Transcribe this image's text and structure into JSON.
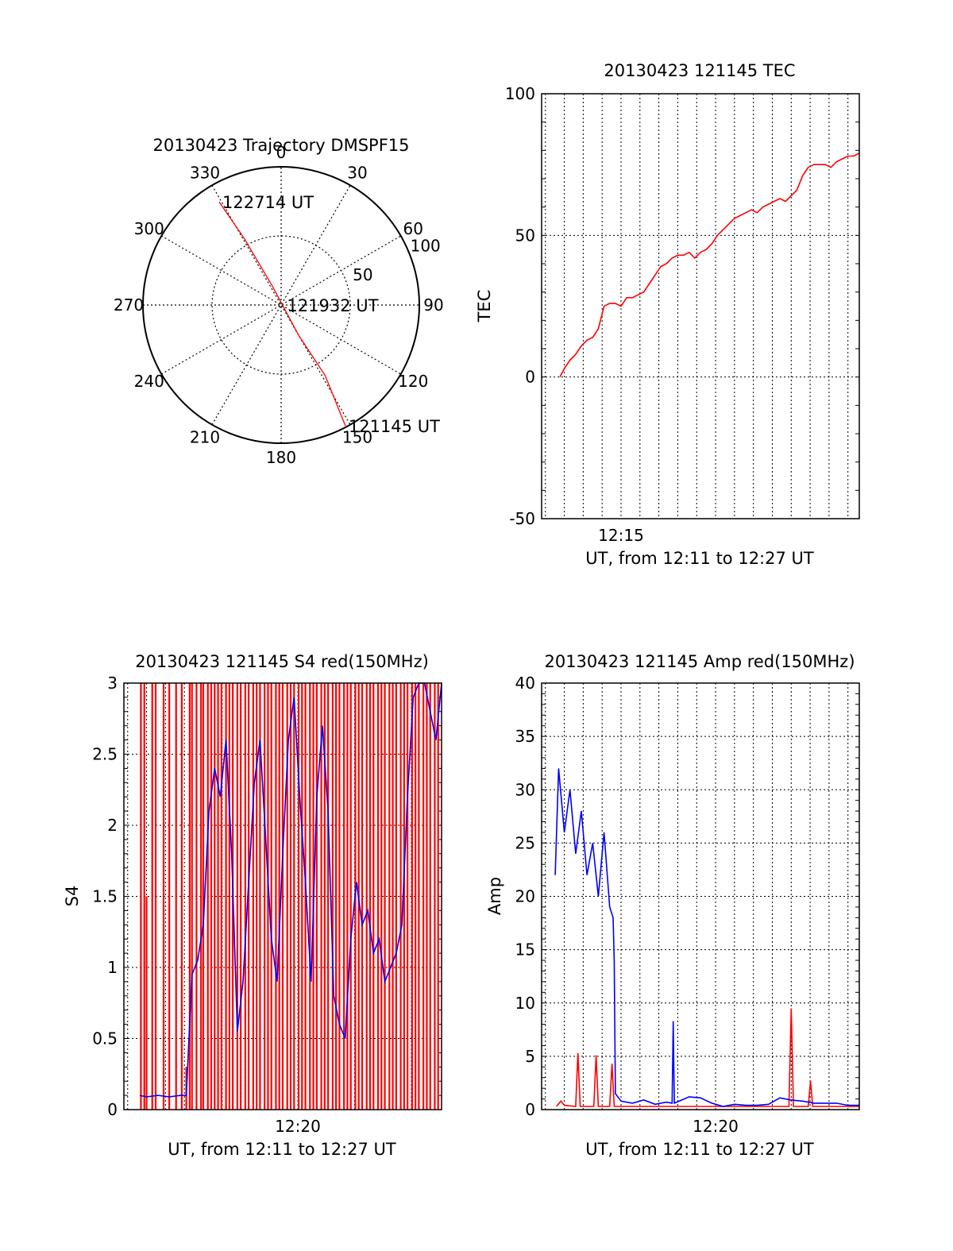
{
  "chart_data": [
    {
      "type": "polar",
      "title": "20130423 Trajectory DMSPF15",
      "angle_ticks": [
        "0",
        "30",
        "60",
        "90",
        "120",
        "150",
        "180",
        "210",
        "240",
        "270",
        "300",
        "330"
      ],
      "radius_ticks": [
        "50",
        "100"
      ],
      "grid": true,
      "series": [
        {
          "color": "#ff0000",
          "points": [
            {
              "azimuth": 152,
              "radius": 99
            },
            {
              "azimuth": 148,
              "radius": 60
            },
            {
              "azimuth": 150,
              "radius": 25
            },
            {
              "azimuth": 335,
              "radius": 15
            },
            {
              "azimuth": 331,
              "radius": 55
            },
            {
              "azimuth": 329,
              "radius": 87
            }
          ]
        }
      ],
      "annotations": [
        {
          "text": "122714 UT",
          "azimuth": 329,
          "radius": 87
        },
        {
          "text": "121932 UT",
          "azimuth": 90,
          "radius": 2
        },
        {
          "text": "121145 UT",
          "azimuth": 152,
          "radius": 99
        }
      ]
    },
    {
      "type": "line",
      "title": "20130423 121145 TEC",
      "xlabel": "UT, from 12:11 to 12:27 UT",
      "ylabel": "TEC",
      "xlim": [
        12.18,
        12.46
      ],
      "ylim": [
        -50,
        100
      ],
      "yticks": [
        "-50",
        "0",
        "50",
        "100"
      ],
      "xticks": [
        {
          "value": 12.25,
          "label": "12:15"
        }
      ],
      "grid": true,
      "series": [
        {
          "color": "#ff0000",
          "x": [
            12.196,
            12.2,
            12.205,
            12.21,
            12.215,
            12.22,
            12.225,
            12.23,
            12.235,
            12.24,
            12.245,
            12.25,
            12.255,
            12.26,
            12.265,
            12.27,
            12.275,
            12.28,
            12.285,
            12.29,
            12.295,
            12.3,
            12.305,
            12.31,
            12.315,
            12.32,
            12.325,
            12.33,
            12.335,
            12.34,
            12.345,
            12.35,
            12.355,
            12.36,
            12.365,
            12.37,
            12.375,
            12.38,
            12.385,
            12.39,
            12.395,
            12.4,
            12.405,
            12.41,
            12.415,
            12.42,
            12.425,
            12.43,
            12.435,
            12.44,
            12.445,
            12.45,
            12.455,
            12.46
          ],
          "y": [
            0,
            3,
            6,
            8,
            11,
            13,
            14,
            17,
            25,
            26,
            26,
            25,
            28,
            28,
            29,
            30,
            33,
            36,
            39,
            40,
            42,
            43,
            43,
            44,
            42,
            44,
            45,
            47,
            50,
            52,
            54,
            56,
            57,
            58,
            59,
            58,
            60,
            61,
            62,
            63,
            62,
            64,
            66,
            71,
            74,
            75,
            75,
            75,
            74,
            76,
            77,
            78,
            78,
            79
          ]
        }
      ]
    },
    {
      "type": "line",
      "title": "20130423 121145 S4 red(150MHz)",
      "xlabel": "UT, from 12:11 to 12:27 UT",
      "ylabel": "S4",
      "xlim": [
        12.18,
        12.46
      ],
      "ylim": [
        0,
        3
      ],
      "yticks": [
        "0",
        "0.5",
        "1",
        "1.5",
        "2",
        "2.5",
        "3"
      ],
      "xticks": [
        {
          "value": 12.3333,
          "label": "12:20"
        }
      ],
      "grid": true,
      "series": [
        {
          "color": "#ff0000",
          "style": "spikes",
          "x": [
            12.195,
            12.198,
            12.2,
            12.205,
            12.208,
            12.215,
            12.22,
            12.226,
            12.231,
            12.235,
            12.238,
            12.24,
            12.244,
            12.248,
            12.25,
            12.254,
            12.257,
            12.26,
            12.263,
            12.266,
            12.27,
            12.273,
            12.276,
            12.28,
            12.283,
            12.287,
            12.29,
            12.294,
            12.297,
            12.3,
            12.304,
            12.307,
            12.31,
            12.314,
            12.317,
            12.32,
            12.324,
            12.327,
            12.33,
            12.334,
            12.337,
            12.34,
            12.344,
            12.347,
            12.35,
            12.354,
            12.357,
            12.36,
            12.364,
            12.367,
            12.37,
            12.374,
            12.377,
            12.38,
            12.384,
            12.387,
            12.39,
            12.394,
            12.397,
            12.4,
            12.404,
            12.407,
            12.41,
            12.414,
            12.417,
            12.42,
            12.424,
            12.427,
            12.43,
            12.434,
            12.437,
            12.44,
            12.444,
            12.447,
            12.45,
            12.454,
            12.457
          ],
          "y": [
            3,
            3,
            1.5,
            3,
            3,
            3,
            3,
            3,
            3,
            0.3,
            3,
            3,
            3,
            3,
            3,
            3,
            3,
            3,
            3,
            3,
            3,
            3,
            3,
            3,
            3,
            3,
            3,
            3,
            3,
            3,
            3,
            3,
            3,
            3,
            3,
            3,
            3,
            3,
            3,
            3,
            3,
            3,
            3,
            3,
            3,
            3,
            3,
            3,
            3,
            3,
            3,
            3,
            3,
            3,
            3,
            3,
            3,
            3,
            3,
            3,
            3,
            3,
            3,
            3,
            3,
            3,
            3,
            3,
            3,
            3,
            3,
            3,
            3,
            3,
            3,
            3,
            3
          ]
        },
        {
          "color": "#0000ff",
          "x": [
            12.194,
            12.2,
            12.21,
            12.22,
            12.23,
            12.235,
            12.24,
            12.245,
            12.25,
            12.255,
            12.26,
            12.265,
            12.27,
            12.275,
            12.28,
            12.285,
            12.29,
            12.295,
            12.3,
            12.305,
            12.31,
            12.315,
            12.32,
            12.325,
            12.33,
            12.335,
            12.34,
            12.345,
            12.35,
            12.355,
            12.36,
            12.365,
            12.37,
            12.375,
            12.38,
            12.385,
            12.39,
            12.395,
            12.4,
            12.405,
            12.41,
            12.415,
            12.42,
            12.425,
            12.43,
            12.435,
            12.44,
            12.445,
            12.45,
            12.455,
            12.46
          ],
          "y": [
            0.1,
            0.09,
            0.1,
            0.09,
            0.1,
            0.1,
            0.95,
            1.05,
            1.3,
            2.1,
            2.4,
            2.2,
            2.6,
            1.8,
            0.55,
            0.9,
            1.6,
            2.3,
            2.6,
            1.9,
            1.2,
            0.9,
            1.8,
            2.6,
            2.9,
            2.2,
            1.6,
            0.9,
            2.2,
            2.7,
            2.1,
            0.8,
            0.6,
            0.5,
            1.2,
            1.6,
            1.3,
            1.4,
            1.1,
            1.2,
            0.9,
            1.0,
            1.1,
            1.3,
            2.2,
            2.9,
            3.0,
            3.0,
            2.8,
            2.6,
            3.0
          ]
        }
      ]
    },
    {
      "type": "line",
      "title": "20130423 121145 Amp red(150MHz)",
      "xlabel": "UT, from 12:11 to 12:27 UT",
      "ylabel": "Amp",
      "xlim": [
        12.18,
        12.46
      ],
      "ylim": [
        0,
        40
      ],
      "yticks": [
        "0",
        "5",
        "10",
        "15",
        "20",
        "25",
        "30",
        "35",
        "40"
      ],
      "xticks": [
        {
          "value": 12.3333,
          "label": "12:20"
        }
      ],
      "grid": true,
      "series": [
        {
          "color": "#ff0000",
          "x": [
            12.193,
            12.197,
            12.2,
            12.21,
            12.212,
            12.214,
            12.22,
            12.226,
            12.228,
            12.23,
            12.235,
            12.24,
            12.242,
            12.244,
            12.25,
            12.3,
            12.38,
            12.398,
            12.4,
            12.402,
            12.415,
            12.417,
            12.419,
            12.46
          ],
          "y": [
            0.3,
            0.8,
            0.4,
            0.3,
            5.3,
            0.3,
            0.3,
            0.3,
            5.1,
            0.3,
            0.3,
            0.3,
            4.3,
            0.3,
            0.3,
            0.3,
            0.3,
            0.3,
            9.5,
            0.3,
            0.3,
            2.7,
            0.3,
            0.3
          ]
        },
        {
          "color": "#0000ff",
          "x": [
            12.192,
            12.195,
            12.2,
            12.205,
            12.21,
            12.215,
            12.22,
            12.225,
            12.23,
            12.235,
            12.24,
            12.243,
            12.244,
            12.245,
            12.25,
            12.26,
            12.27,
            12.28,
            12.29,
            12.295,
            12.296,
            12.297,
            12.31,
            12.32,
            12.33,
            12.34,
            12.35,
            12.36,
            12.37,
            12.38,
            12.39,
            12.4,
            12.41,
            12.42,
            12.43,
            12.44,
            12.45,
            12.46
          ],
          "y": [
            22,
            32,
            26,
            30,
            24,
            28,
            22,
            25,
            20,
            26,
            19,
            18,
            14,
            1.5,
            0.8,
            0.6,
            0.9,
            0.5,
            0.7,
            0.6,
            8.3,
            0.6,
            1.2,
            1.1,
            0.6,
            0.3,
            0.5,
            0.4,
            0.4,
            0.5,
            1.1,
            0.9,
            0.8,
            0.6,
            0.6,
            0.6,
            0.4,
            0.4
          ]
        }
      ]
    }
  ]
}
